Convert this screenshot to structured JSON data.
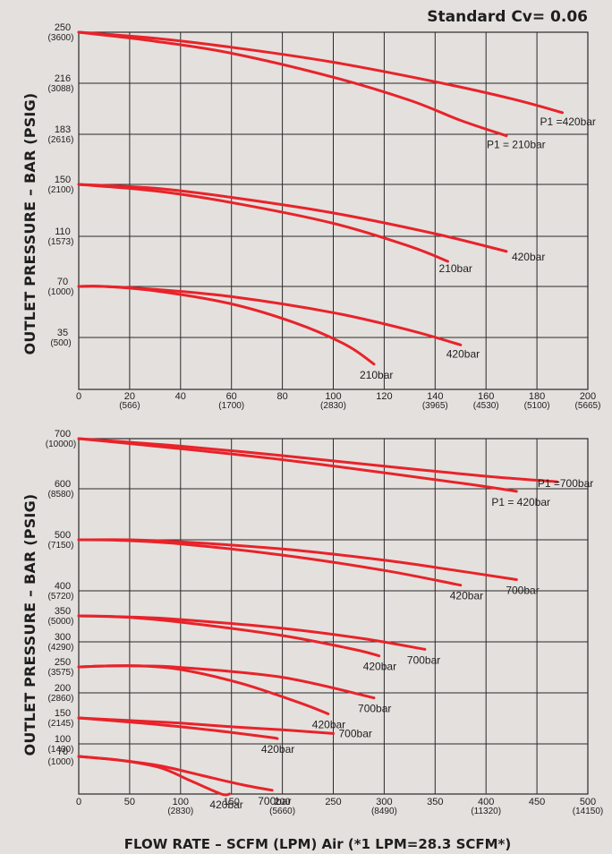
{
  "header": {
    "title": "Standard Cv= 0.06"
  },
  "colors": {
    "curve": "#e8232a",
    "background": "#e4e0dd",
    "grid": "#2a2a2a"
  },
  "chart_data": [
    {
      "type": "line",
      "ylabel": "OUTLET PRESSURE – BAR (PSIG)",
      "xlim": [
        0,
        200
      ],
      "ylim": [
        0,
        250
      ],
      "x_ticks": [
        {
          "label": "0",
          "sub": ""
        },
        {
          "label": "20",
          "sub": "(566)"
        },
        {
          "label": "40",
          "sub": ""
        },
        {
          "label": "60",
          "sub": "(1700)"
        },
        {
          "label": "80",
          "sub": ""
        },
        {
          "label": "100",
          "sub": "(2830)"
        },
        {
          "label": "120",
          "sub": ""
        },
        {
          "label": "140",
          "sub": "(3965)"
        },
        {
          "label": "160",
          "sub": "(4530)"
        },
        {
          "label": "180",
          "sub": "(5100)"
        },
        {
          "label": "200",
          "sub": "(5665)"
        }
      ],
      "y_ticks": [
        {
          "value": 35,
          "label": "35",
          "sub": "(500)"
        },
        {
          "value": 70,
          "label": "70",
          "sub": "(1000)"
        },
        {
          "value": 110,
          "label": "110",
          "sub": "(1573)"
        },
        {
          "value": 150,
          "label": "150",
          "sub": "(2100)"
        },
        {
          "value": 183,
          "label": "183",
          "sub": "(2616)"
        },
        {
          "value": 216,
          "label": "216",
          "sub": "(3088)"
        },
        {
          "value": 250,
          "label": "250",
          "sub": "(3600)"
        }
      ],
      "x_grid": [
        0,
        20,
        40,
        60,
        80,
        100,
        120,
        140,
        160,
        180,
        200
      ],
      "series": [
        {
          "name": "P1 =420bar",
          "x": [
            0,
            30,
            60,
            100,
            140,
            170,
            190
          ],
          "y": [
            250,
            246,
            240,
            230,
            217,
            206,
            197
          ]
        },
        {
          "name": "P1 = 210bar",
          "x": [
            0,
            30,
            60,
            100,
            130,
            150,
            168
          ],
          "y": [
            250,
            244,
            236,
            220,
            205,
            192,
            182
          ]
        },
        {
          "name": "420bar",
          "x": [
            0,
            30,
            60,
            100,
            140,
            168
          ],
          "y": [
            150,
            147,
            140,
            128,
            112,
            98
          ]
        },
        {
          "name": "210bar",
          "x": [
            0,
            30,
            60,
            100,
            130,
            145
          ],
          "y": [
            150,
            145,
            136,
            120,
            102,
            90
          ]
        },
        {
          "name": "420bar",
          "x": [
            0,
            10,
            30,
            60,
            100,
            130,
            150
          ],
          "y": [
            70,
            70,
            68,
            63,
            52,
            40,
            30
          ]
        },
        {
          "name": "210bar",
          "x": [
            0,
            10,
            30,
            60,
            85,
            105,
            116
          ],
          "y": [
            70,
            70,
            67,
            58,
            45,
            30,
            17
          ]
        }
      ]
    },
    {
      "type": "line",
      "ylabel": "OUTLET PRESSURE – BAR (PSIG)",
      "xlabel": "FLOW RATE – SCFM (LPM) Air (*1 LPM=28.3 SCFM*)",
      "xlim": [
        0,
        500
      ],
      "ylim": [
        50,
        700
      ],
      "x_ticks": [
        {
          "label": "0",
          "sub": ""
        },
        {
          "label": "50",
          "sub": ""
        },
        {
          "label": "100",
          "sub": "(2830)"
        },
        {
          "label": "150",
          "sub": ""
        },
        {
          "label": "200",
          "sub": "(5660)"
        },
        {
          "label": "250",
          "sub": ""
        },
        {
          "label": "300",
          "sub": "(8490)"
        },
        {
          "label": "350",
          "sub": ""
        },
        {
          "label": "400",
          "sub": "(11320)"
        },
        {
          "label": "450",
          "sub": ""
        },
        {
          "label": "500",
          "sub": "(14150)"
        }
      ],
      "y_ticks": [
        {
          "value": 70,
          "label": "70",
          "sub": "(1000)"
        },
        {
          "value": 100,
          "label": "100",
          "sub": "(1430)"
        },
        {
          "value": 150,
          "label": "150",
          "sub": "(2145)"
        },
        {
          "value": 200,
          "label": "200",
          "sub": "(2860)"
        },
        {
          "value": 250,
          "label": "250",
          "sub": "(3575)"
        },
        {
          "value": 300,
          "label": "300",
          "sub": "(4290)"
        },
        {
          "value": 350,
          "label": "350",
          "sub": "(5000)"
        },
        {
          "value": 400,
          "label": "400",
          "sub": "(5720)"
        },
        {
          "value": 500,
          "label": "500",
          "sub": "(7150)"
        },
        {
          "value": 600,
          "label": "600",
          "sub": "(8580)"
        },
        {
          "value": 700,
          "label": "700",
          "sub": "(10000)"
        }
      ],
      "y_grid": [
        100,
        200,
        300,
        400,
        500,
        600
      ],
      "x_grid": [
        0,
        50,
        100,
        150,
        200,
        250,
        300,
        350,
        400,
        450,
        500
      ],
      "series": [
        {
          "name": "P1 =700bar",
          "x": [
            0,
            100,
            200,
            300,
            400,
            470
          ],
          "y": [
            700,
            685,
            666,
            645,
            625,
            614
          ]
        },
        {
          "name": "P1 = 420bar",
          "x": [
            0,
            100,
            200,
            300,
            380,
            430
          ],
          "y": [
            700,
            680,
            658,
            632,
            610,
            595
          ]
        },
        {
          "name": "700bar",
          "x": [
            0,
            50,
            100,
            200,
            300,
            370,
            430
          ],
          "y": [
            500,
            500,
            496,
            482,
            460,
            440,
            422
          ]
        },
        {
          "name": "420bar",
          "x": [
            0,
            40,
            100,
            200,
            300,
            375
          ],
          "y": [
            500,
            499,
            492,
            470,
            440,
            411
          ]
        },
        {
          "name": "700bar",
          "x": [
            0,
            50,
            100,
            200,
            280,
            340
          ],
          "y": [
            350,
            348,
            343,
            326,
            306,
            285
          ]
        },
        {
          "name": "420bar",
          "x": [
            0,
            50,
            100,
            200,
            270,
            295
          ],
          "y": [
            350,
            347,
            338,
            312,
            285,
            272
          ]
        },
        {
          "name": "700bar",
          "x": [
            0,
            30,
            60,
            100,
            200,
            290
          ],
          "y": [
            250,
            252,
            252,
            249,
            230,
            190
          ]
        },
        {
          "name": "420bar",
          "x": [
            0,
            30,
            60,
            100,
            160,
            220,
            245
          ],
          "y": [
            250,
            252,
            252,
            245,
            218,
            178,
            158
          ]
        },
        {
          "name": "700bar",
          "x": [
            0,
            50,
            100,
            150,
            200,
            250
          ],
          "y": [
            150,
            145,
            140,
            133,
            127,
            120
          ]
        },
        {
          "name": "420bar",
          "x": [
            0,
            50,
            100,
            150,
            190,
            195
          ],
          "y": [
            150,
            142,
            133,
            122,
            112,
            110
          ]
        },
        {
          "name": "700bar",
          "x": [
            0,
            40,
            80,
            120,
            160,
            190
          ],
          "y": [
            70,
            68,
            65,
            60,
            55,
            52
          ]
        },
        {
          "name": "420bar",
          "x": [
            0,
            40,
            80,
            110,
            140,
            148
          ],
          "y": [
            70,
            68,
            64,
            57,
            48,
            45
          ]
        }
      ]
    }
  ]
}
